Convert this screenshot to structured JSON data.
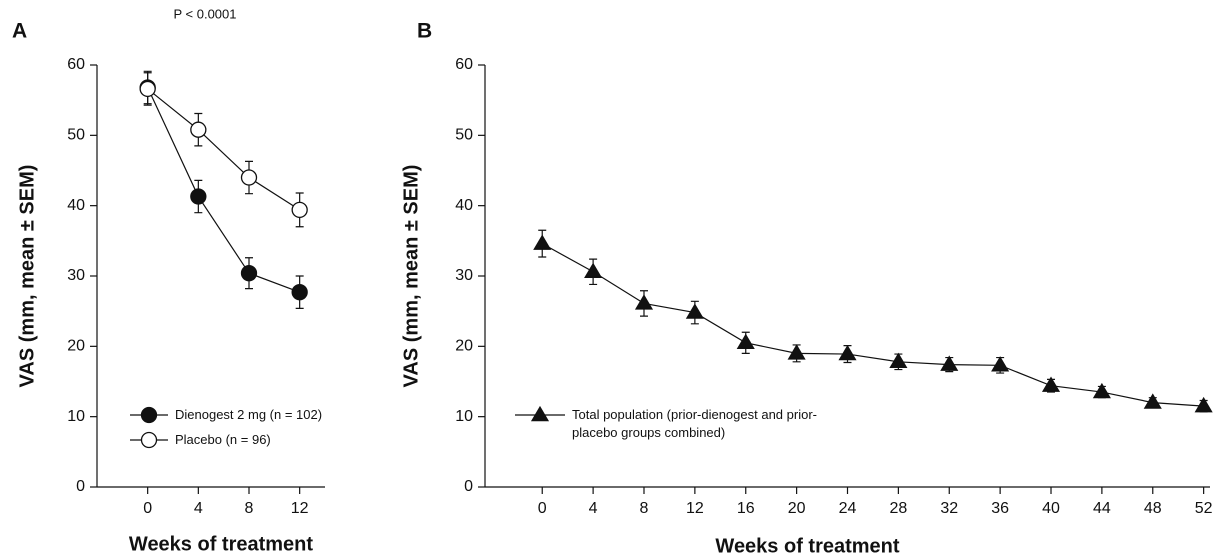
{
  "chart_data": [
    {
      "type": "line",
      "panel_label": "A",
      "annotation": "P < 0.0001",
      "xlabel": "Weeks of treatment",
      "ylabel": "VAS (mm, mean ± SEM)",
      "x": [
        0,
        4,
        8,
        12
      ],
      "xlim": [
        -4,
        14
      ],
      "xticks": [
        0,
        4,
        8,
        12
      ],
      "ylim": [
        0,
        60
      ],
      "yticks": [
        0,
        10,
        20,
        30,
        40,
        50,
        60
      ],
      "legend": "lower left",
      "series": [
        {
          "name": "Dienogest 2 mg (n = 102)",
          "color": "#111111",
          "marker": "circle",
          "values": [
            56.8,
            41.3,
            30.4,
            27.7
          ],
          "errors": [
            2.3,
            2.3,
            2.2,
            2.3
          ]
        },
        {
          "name": "Placebo (n = 96)",
          "color": "#ffffff",
          "marker": "circle",
          "values": [
            56.6,
            50.8,
            44.0,
            39.4
          ],
          "errors": [
            2.3,
            2.3,
            2.3,
            2.4
          ]
        }
      ]
    },
    {
      "type": "line",
      "panel_label": "B",
      "xlabel": "Weeks of treatment",
      "ylabel": "VAS (mm, mean ± SEM)",
      "x": [
        0,
        4,
        8,
        12,
        16,
        20,
        24,
        28,
        32,
        36,
        40,
        44,
        48,
        52
      ],
      "xlim": [
        -4.5,
        52.5
      ],
      "xticks": [
        0,
        4,
        8,
        12,
        16,
        20,
        24,
        28,
        32,
        36,
        40,
        44,
        48,
        52
      ],
      "ylim": [
        0,
        60
      ],
      "yticks": [
        0,
        10,
        20,
        30,
        40,
        50,
        60
      ],
      "legend": "lower left",
      "series": [
        {
          "name": "Total population (prior-dienogest and prior-placebo groups combined)",
          "color": "#111111",
          "marker": "triangle",
          "values": [
            34.6,
            30.6,
            26.1,
            24.8,
            20.5,
            19.0,
            18.9,
            17.8,
            17.4,
            17.3,
            14.4,
            13.5,
            12.0,
            11.5
          ],
          "errors": [
            1.9,
            1.8,
            1.8,
            1.6,
            1.5,
            1.2,
            1.2,
            1.1,
            1.0,
            1.1,
            0.9,
            0.8,
            0.7,
            0.8
          ]
        }
      ]
    }
  ]
}
